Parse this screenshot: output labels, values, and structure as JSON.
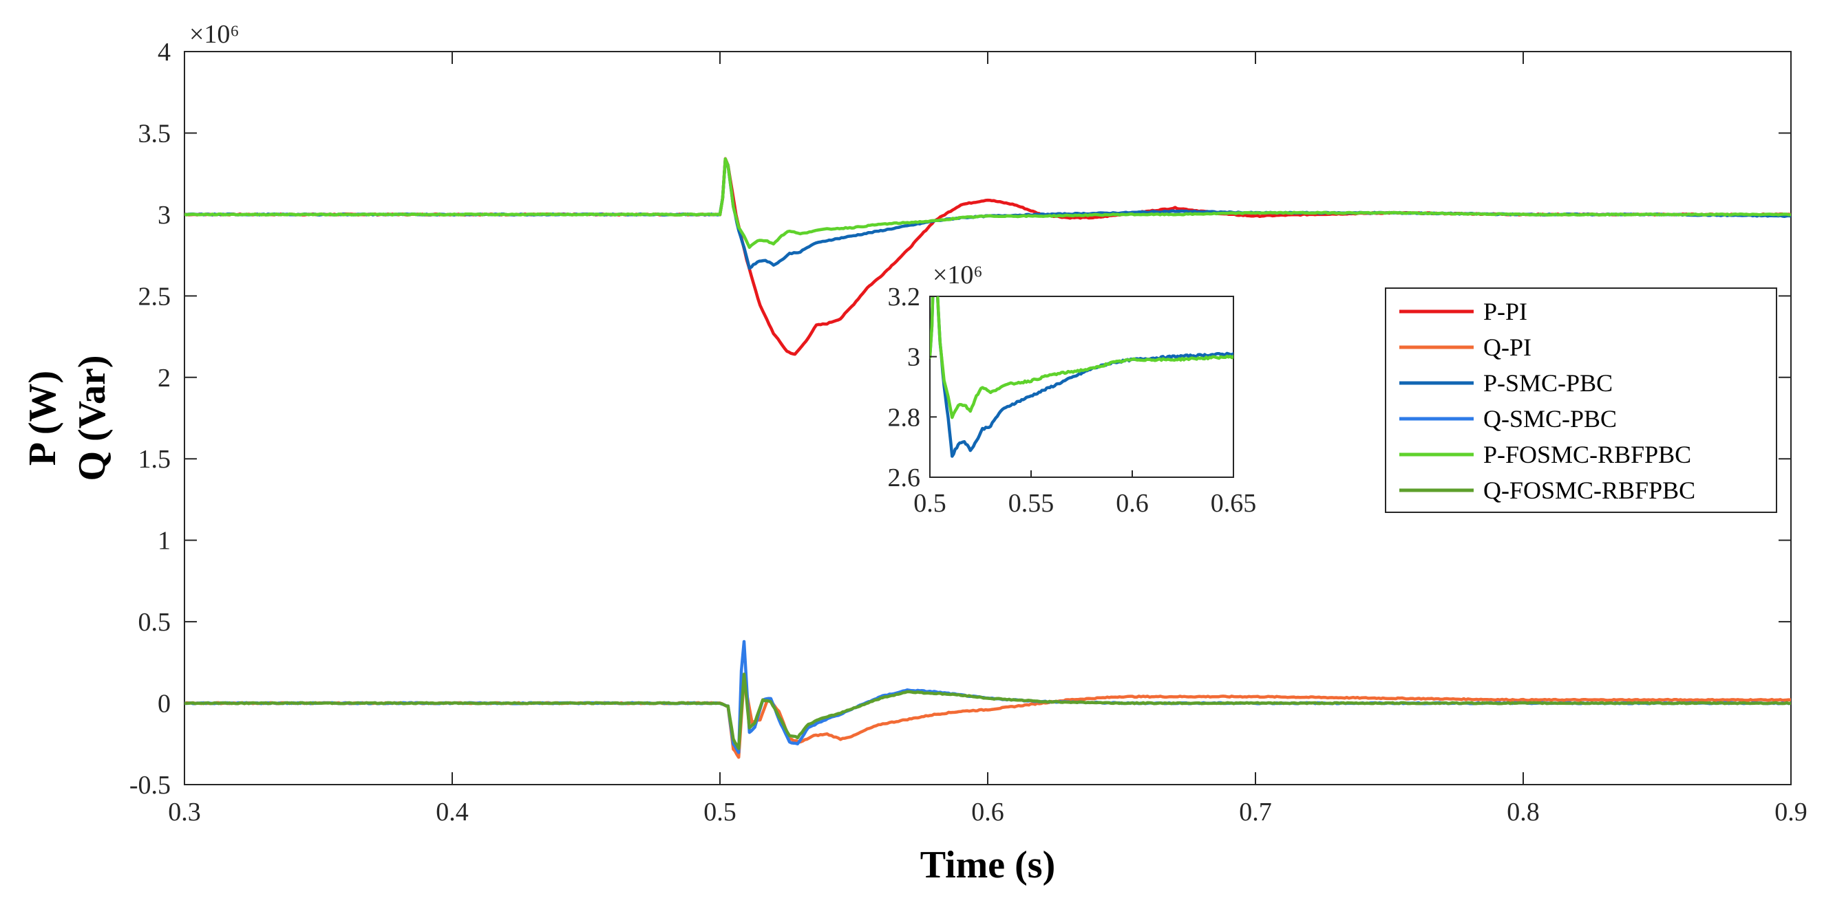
{
  "chart_data": {
    "type": "line",
    "xlabel": "Time (s)",
    "ylabel_line1": "P (W)",
    "ylabel_line2": "Q (Var)",
    "xlim": [
      0.3,
      0.9
    ],
    "ylim": [
      -0.5,
      4.0
    ],
    "y_multiplier": "×10⁶",
    "xticks": [
      "0.3",
      "0.4",
      "0.5",
      "0.6",
      "0.7",
      "0.8",
      "0.9"
    ],
    "xtick_values": [
      0.3,
      0.4,
      0.5,
      0.6,
      0.7,
      0.8,
      0.9
    ],
    "yticks": [
      "-0.5",
      "0",
      "0.5",
      "1",
      "1.5",
      "2",
      "2.5",
      "3",
      "3.5",
      "4"
    ],
    "ytick_values": [
      -0.5,
      0,
      0.5,
      1,
      1.5,
      2,
      2.5,
      3,
      3.5,
      4
    ],
    "legend_position": "center-right",
    "series": [
      {
        "name": "P-PI",
        "color": "#e8181b",
        "x": [
          0.3,
          0.5,
          0.501,
          0.502,
          0.503,
          0.506,
          0.51,
          0.515,
          0.52,
          0.525,
          0.528,
          0.532,
          0.536,
          0.54,
          0.545,
          0.55,
          0.555,
          0.56,
          0.57,
          0.58,
          0.59,
          0.6,
          0.61,
          0.62,
          0.63,
          0.64,
          0.65,
          0.66,
          0.67,
          0.69,
          0.7,
          0.72,
          0.75,
          0.8,
          0.85,
          0.9
        ],
        "y": [
          3.0,
          3.0,
          3.1,
          3.34,
          3.3,
          3.0,
          2.72,
          2.44,
          2.27,
          2.16,
          2.14,
          2.22,
          2.32,
          2.33,
          2.36,
          2.45,
          2.55,
          2.62,
          2.78,
          2.96,
          3.06,
          3.09,
          3.06,
          3.0,
          2.98,
          2.98,
          3.0,
          3.02,
          3.04,
          3.0,
          2.99,
          3.0,
          3.01,
          3.0,
          3.0,
          3.0
        ]
      },
      {
        "name": "Q-PI",
        "color": "#f26b35",
        "x": [
          0.3,
          0.5,
          0.503,
          0.505,
          0.507,
          0.509,
          0.512,
          0.515,
          0.518,
          0.522,
          0.526,
          0.53,
          0.535,
          0.54,
          0.545,
          0.55,
          0.555,
          0.56,
          0.57,
          0.58,
          0.59,
          0.6,
          0.61,
          0.62,
          0.63,
          0.64,
          0.65,
          0.7,
          0.75,
          0.8,
          0.85,
          0.9
        ],
        "y": [
          0.0,
          0.0,
          -0.02,
          -0.28,
          -0.33,
          0.15,
          -0.12,
          -0.1,
          0.03,
          -0.05,
          -0.22,
          -0.24,
          -0.2,
          -0.19,
          -0.22,
          -0.2,
          -0.16,
          -0.13,
          -0.1,
          -0.07,
          -0.05,
          -0.04,
          -0.02,
          0.0,
          0.02,
          0.03,
          0.04,
          0.04,
          0.03,
          0.02,
          0.02,
          0.02
        ]
      },
      {
        "name": "P-SMC-PBC",
        "color": "#1166b3",
        "x": [
          0.3,
          0.5,
          0.501,
          0.502,
          0.503,
          0.505,
          0.507,
          0.509,
          0.511,
          0.514,
          0.517,
          0.52,
          0.523,
          0.526,
          0.53,
          0.535,
          0.54,
          0.55,
          0.56,
          0.57,
          0.58,
          0.59,
          0.6,
          0.62,
          0.65,
          0.67,
          0.7,
          0.72,
          0.75,
          0.8,
          0.85,
          0.9
        ],
        "y": [
          3.0,
          3.0,
          3.1,
          3.34,
          3.3,
          3.05,
          2.9,
          2.8,
          2.67,
          2.71,
          2.72,
          2.69,
          2.72,
          2.76,
          2.77,
          2.82,
          2.84,
          2.87,
          2.9,
          2.93,
          2.96,
          2.98,
          2.99,
          3.0,
          3.01,
          3.02,
          3.01,
          3.01,
          3.01,
          3.0,
          3.0,
          2.99
        ]
      },
      {
        "name": "Q-SMC-PBC",
        "color": "#2e7be8",
        "x": [
          0.3,
          0.5,
          0.503,
          0.505,
          0.507,
          0.508,
          0.509,
          0.511,
          0.513,
          0.516,
          0.519,
          0.522,
          0.526,
          0.529,
          0.533,
          0.537,
          0.541,
          0.545,
          0.55,
          0.56,
          0.57,
          0.58,
          0.59,
          0.6,
          0.62,
          0.65,
          0.7,
          0.8,
          0.9
        ],
        "y": [
          0.0,
          0.0,
          -0.02,
          -0.25,
          -0.3,
          0.2,
          0.38,
          -0.18,
          -0.15,
          0.02,
          0.03,
          -0.1,
          -0.24,
          -0.25,
          -0.15,
          -0.12,
          -0.09,
          -0.07,
          -0.03,
          0.04,
          0.08,
          0.07,
          0.05,
          0.03,
          0.01,
          0.0,
          0.0,
          0.0,
          0.0
        ]
      },
      {
        "name": "P-FOSMC-RBFPBC",
        "color": "#5fd22c",
        "x": [
          0.3,
          0.5,
          0.501,
          0.502,
          0.503,
          0.505,
          0.507,
          0.509,
          0.511,
          0.514,
          0.517,
          0.52,
          0.523,
          0.526,
          0.53,
          0.535,
          0.54,
          0.55,
          0.56,
          0.57,
          0.58,
          0.59,
          0.6,
          0.62,
          0.65,
          0.67,
          0.7,
          0.72,
          0.75,
          0.8,
          0.85,
          0.9
        ],
        "y": [
          3.0,
          3.0,
          3.1,
          3.34,
          3.3,
          3.05,
          2.92,
          2.87,
          2.8,
          2.84,
          2.84,
          2.82,
          2.87,
          2.9,
          2.88,
          2.9,
          2.91,
          2.92,
          2.94,
          2.95,
          2.96,
          2.98,
          2.99,
          2.99,
          3.0,
          3.0,
          3.01,
          3.01,
          3.01,
          3.0,
          3.0,
          3.0
        ]
      },
      {
        "name": "Q-FOSMC-RBFPBC",
        "color": "#5e9f2c",
        "x": [
          0.3,
          0.5,
          0.503,
          0.505,
          0.507,
          0.509,
          0.511,
          0.513,
          0.516,
          0.519,
          0.522,
          0.526,
          0.529,
          0.533,
          0.537,
          0.541,
          0.545,
          0.55,
          0.56,
          0.57,
          0.58,
          0.59,
          0.6,
          0.62,
          0.65,
          0.7,
          0.8,
          0.9
        ],
        "y": [
          0.0,
          0.0,
          -0.02,
          -0.22,
          -0.28,
          0.18,
          -0.15,
          -0.12,
          0.02,
          0.01,
          -0.08,
          -0.2,
          -0.21,
          -0.13,
          -0.1,
          -0.08,
          -0.06,
          -0.03,
          0.03,
          0.07,
          0.06,
          0.05,
          0.03,
          0.01,
          0.0,
          0.0,
          0.0,
          0.0
        ]
      }
    ],
    "inset": {
      "xlim": [
        0.5,
        0.65
      ],
      "ylim": [
        2.6,
        3.2
      ],
      "y_multiplier": "×10⁶",
      "xticks": [
        "0.5",
        "0.55",
        "0.6",
        "0.65"
      ],
      "xtick_values": [
        0.5,
        0.55,
        0.6,
        0.65
      ],
      "yticks": [
        "2.6",
        "2.8",
        "3",
        "3.2"
      ],
      "ytick_values": [
        2.6,
        2.8,
        3.0,
        3.2
      ],
      "series": [
        "P-SMC-PBC",
        "P-FOSMC-RBFPBC"
      ]
    }
  }
}
